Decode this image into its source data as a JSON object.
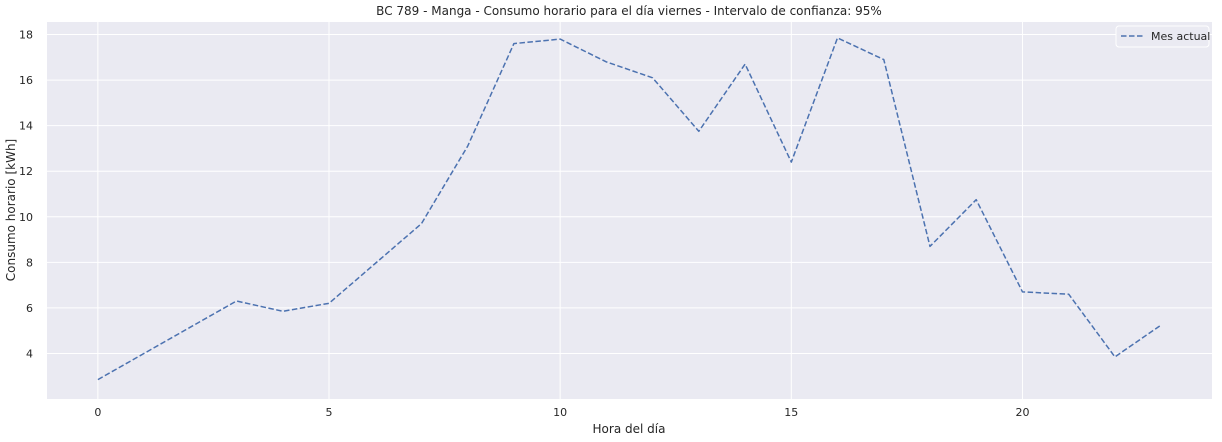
{
  "chart_data": {
    "type": "line",
    "title": "BC 789 - Manga - Consumo horario para el día viernes - Intervalo de confianza: 95%",
    "xlabel": "Hora del día",
    "ylabel": "Consumo horario [kWh]",
    "xlim": [
      -1.1,
      24.1
    ],
    "ylim": [
      2.0,
      18.55
    ],
    "xticks": [
      0,
      5,
      10,
      15,
      20
    ],
    "yticks": [
      4,
      6,
      8,
      10,
      12,
      14,
      16,
      18
    ],
    "grid": true,
    "legend_position": "top-right",
    "series": [
      {
        "name": "Mes actual",
        "style": "dashed",
        "color": "#4c72b0",
        "x": [
          0,
          1,
          2,
          3,
          4,
          5,
          6,
          7,
          8,
          9,
          10,
          11,
          12,
          13,
          14,
          15,
          16,
          17,
          18,
          19,
          20,
          21,
          22,
          23
        ],
        "y": [
          2.85,
          4.0,
          5.15,
          6.3,
          5.85,
          6.2,
          7.95,
          9.7,
          13.1,
          17.6,
          17.8,
          16.8,
          16.1,
          13.75,
          16.7,
          12.4,
          17.85,
          16.9,
          8.7,
          10.75,
          6.7,
          6.6,
          3.85,
          5.25
        ]
      }
    ]
  }
}
